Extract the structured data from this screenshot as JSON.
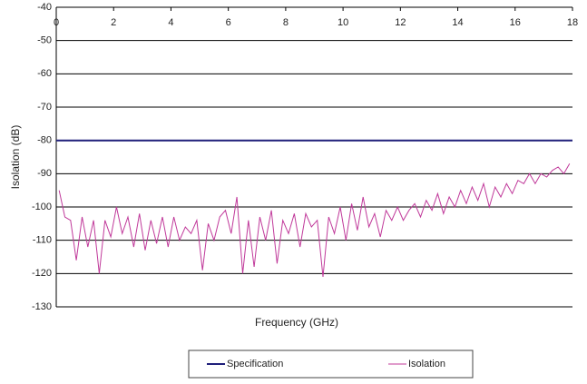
{
  "chart_data": {
    "type": "line",
    "xlabel": "Frequency (GHz)",
    "ylabel": "Isolation (dB)",
    "xlim": [
      0,
      18
    ],
    "xticks": [
      0,
      2,
      4,
      6,
      8,
      10,
      12,
      14,
      16,
      18
    ],
    "ylim": [
      -130,
      -40
    ],
    "yticks": [
      -40,
      -50,
      -60,
      -70,
      -80,
      -90,
      -100,
      -110,
      -120,
      -130
    ],
    "grid": true,
    "legend": "bottom",
    "series": [
      {
        "name": "Specification",
        "color": "#1f1f7a",
        "x": [
          0,
          18
        ],
        "values": [
          -80,
          -80
        ]
      },
      {
        "name": "Isolation",
        "color": "#c0399a",
        "x": [
          0.1,
          0.3,
          0.5,
          0.7,
          0.9,
          1.1,
          1.3,
          1.5,
          1.7,
          1.9,
          2.1,
          2.3,
          2.5,
          2.7,
          2.9,
          3.1,
          3.3,
          3.5,
          3.7,
          3.9,
          4.1,
          4.3,
          4.5,
          4.7,
          4.9,
          5.1,
          5.3,
          5.5,
          5.7,
          5.9,
          6.1,
          6.3,
          6.5,
          6.7,
          6.9,
          7.1,
          7.3,
          7.5,
          7.7,
          7.9,
          8.1,
          8.3,
          8.5,
          8.7,
          8.9,
          9.1,
          9.3,
          9.5,
          9.7,
          9.9,
          10.1,
          10.3,
          10.5,
          10.7,
          10.9,
          11.1,
          11.3,
          11.5,
          11.7,
          11.9,
          12.1,
          12.3,
          12.5,
          12.7,
          12.9,
          13.1,
          13.3,
          13.5,
          13.7,
          13.9,
          14.1,
          14.3,
          14.5,
          14.7,
          14.9,
          15.1,
          15.3,
          15.5,
          15.7,
          15.9,
          16.1,
          16.3,
          16.5,
          16.7,
          16.9,
          17.1,
          17.3,
          17.5,
          17.7,
          17.9
        ],
        "values": [
          -95,
          -103,
          -104,
          -116,
          -103,
          -112,
          -104,
          -120,
          -104,
          -109,
          -100,
          -108,
          -103,
          -112,
          -102,
          -113,
          -104,
          -111,
          -103,
          -112,
          -103,
          -110,
          -106,
          -108,
          -104,
          -119,
          -105,
          -110,
          -103,
          -101,
          -108,
          -97,
          -120,
          -104,
          -118,
          -103,
          -110,
          -101,
          -117,
          -104,
          -108,
          -102,
          -112,
          -102,
          -106,
          -104,
          -121,
          -103,
          -108,
          -100,
          -110,
          -99,
          -107,
          -97,
          -106,
          -102,
          -109,
          -101,
          -104,
          -100,
          -104,
          -101,
          -99,
          -103,
          -98,
          -101,
          -96,
          -102,
          -97,
          -100,
          -95,
          -99,
          -94,
          -98,
          -93,
          -100,
          -94,
          -97,
          -93,
          -96,
          -92,
          -93,
          -90,
          -93,
          -90,
          -91,
          -89,
          -88,
          -90,
          -87
        ]
      }
    ]
  }
}
